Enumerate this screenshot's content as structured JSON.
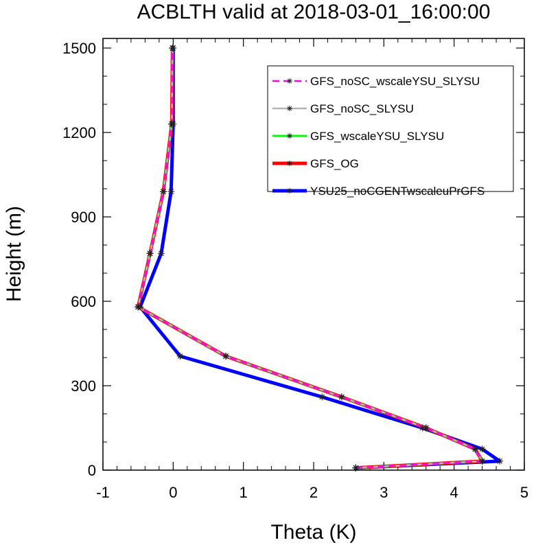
{
  "chart_data": {
    "type": "line",
    "title": "ACBLTH valid at 2018-03-01_16:00:00",
    "xlabel": "Theta (K)",
    "ylabel": "Height (m)",
    "xlim": [
      -1,
      5
    ],
    "ylim": [
      0,
      1500
    ],
    "xticks": [
      -1,
      0,
      1,
      2,
      3,
      4,
      5
    ],
    "yticks": [
      0,
      300,
      600,
      900,
      1200,
      1500
    ],
    "grid": false,
    "legend_position": "top-right",
    "series": [
      {
        "name": "GFS_noSC_wscaleYSU_SLYSU",
        "color": "#ff00ff",
        "dashed": true,
        "marker": "asterisk",
        "x": [
          2.6,
          4.4,
          4.3,
          3.6,
          2.4,
          0.75,
          -0.5,
          -0.33,
          -0.14,
          -0.02,
          -0.01
        ],
        "y": [
          8,
          32,
          75,
          150,
          260,
          405,
          580,
          770,
          990,
          1230,
          1500
        ]
      },
      {
        "name": "GFS_noSC_SLYSU",
        "color": "#b4b4b4",
        "dashed": false,
        "marker": "asterisk",
        "x": [
          2.6,
          4.4,
          4.3,
          3.6,
          2.4,
          0.75,
          -0.5,
          -0.33,
          -0.14,
          -0.02,
          -0.01
        ],
        "y": [
          8,
          32,
          75,
          150,
          260,
          405,
          580,
          770,
          990,
          1230,
          1500
        ]
      },
      {
        "name": "GFS_wscaleYSU_SLYSU",
        "color": "#00ff00",
        "dashed": false,
        "marker": "asterisk",
        "x": [
          2.6,
          4.4,
          4.3,
          3.6,
          2.4,
          0.75,
          -0.5,
          -0.33,
          -0.14,
          -0.02,
          -0.01
        ],
        "y": [
          8,
          32,
          75,
          150,
          260,
          405,
          580,
          770,
          990,
          1230,
          1500
        ]
      },
      {
        "name": "GFS_OG",
        "color": "#ff0000",
        "dashed": false,
        "marker": "asterisk",
        "x": [
          2.6,
          4.4,
          4.3,
          3.6,
          2.4,
          0.75,
          -0.5,
          -0.33,
          -0.14,
          -0.02,
          -0.01
        ],
        "y": [
          8,
          32,
          75,
          150,
          260,
          405,
          580,
          770,
          990,
          1230,
          1500
        ]
      },
      {
        "name": "YSU25_noCGENTwscaleuPrGFS",
        "color": "#0000ff",
        "dashed": false,
        "marker": "asterisk",
        "x": [
          2.6,
          4.65,
          4.4,
          3.55,
          2.12,
          0.1,
          -0.47,
          -0.17,
          -0.03,
          0.0,
          0.0
        ],
        "y": [
          8,
          32,
          75,
          150,
          260,
          405,
          580,
          770,
          990,
          1230,
          1500
        ]
      }
    ]
  }
}
